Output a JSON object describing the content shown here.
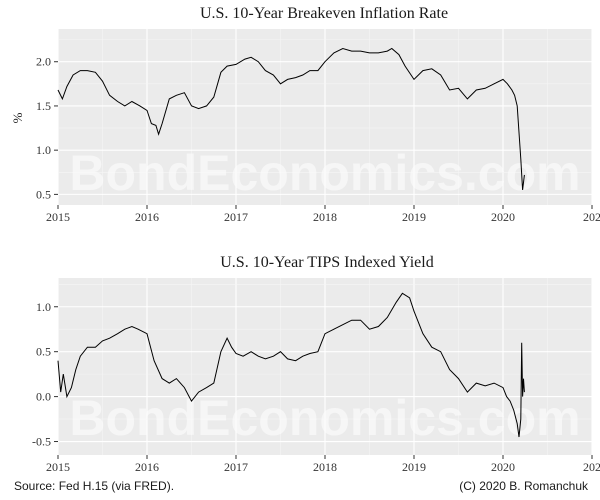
{
  "watermark": "BondEconomics.com",
  "source": "Source: Fed H.15 (via FRED).",
  "copyright": "(C) 2020 B. Romanchuk",
  "colors": {
    "panel_bg": "#ebebeb",
    "grid_major": "#ffffff",
    "grid_minor": "#f5f5f5",
    "line": "#000000"
  },
  "chart_data": [
    {
      "type": "line",
      "title": "U.S. 10-Year Breakeven Inflation Rate",
      "ylabel": "%",
      "xlabel": "",
      "x_ticks": [
        "2015",
        "2016",
        "2017",
        "2018",
        "2019",
        "2020",
        "202"
      ],
      "xlim": [
        2015,
        2021
      ],
      "ylim": [
        0.38,
        2.37
      ],
      "y_ticks": [
        0.5,
        1.0,
        1.5,
        2.0
      ],
      "y_tick_labels": [
        "0.5",
        "1.0",
        "1.5",
        "2.0"
      ],
      "grid": true,
      "series": [
        {
          "name": "",
          "x": [
            2015.0,
            2015.05,
            2015.1,
            2015.17,
            2015.25,
            2015.33,
            2015.42,
            2015.5,
            2015.58,
            2015.67,
            2015.75,
            2015.83,
            2015.92,
            2016.0,
            2016.05,
            2016.1,
            2016.13,
            2016.17,
            2016.25,
            2016.33,
            2016.42,
            2016.5,
            2016.58,
            2016.67,
            2016.75,
            2016.83,
            2016.9,
            2017.0,
            2017.1,
            2017.17,
            2017.25,
            2017.33,
            2017.42,
            2017.5,
            2017.58,
            2017.67,
            2017.75,
            2017.83,
            2017.92,
            2018.0,
            2018.1,
            2018.2,
            2018.3,
            2018.4,
            2018.5,
            2018.6,
            2018.7,
            2018.75,
            2018.83,
            2018.9,
            2019.0,
            2019.1,
            2019.2,
            2019.3,
            2019.4,
            2019.5,
            2019.6,
            2019.7,
            2019.8,
            2019.9,
            2020.0,
            2020.05,
            2020.1,
            2020.13,
            2020.16,
            2020.18,
            2020.2,
            2020.22,
            2020.24
          ],
          "y": [
            1.68,
            1.58,
            1.72,
            1.85,
            1.9,
            1.9,
            1.88,
            1.78,
            1.62,
            1.55,
            1.5,
            1.55,
            1.5,
            1.45,
            1.3,
            1.28,
            1.18,
            1.3,
            1.58,
            1.62,
            1.65,
            1.5,
            1.47,
            1.5,
            1.6,
            1.88,
            1.95,
            1.97,
            2.03,
            2.05,
            2.0,
            1.9,
            1.85,
            1.75,
            1.8,
            1.82,
            1.85,
            1.9,
            1.9,
            2.0,
            2.1,
            2.15,
            2.12,
            2.12,
            2.1,
            2.1,
            2.12,
            2.15,
            2.08,
            1.95,
            1.8,
            1.9,
            1.92,
            1.85,
            1.68,
            1.7,
            1.58,
            1.68,
            1.7,
            1.75,
            1.8,
            1.75,
            1.68,
            1.62,
            1.5,
            1.2,
            0.9,
            0.55,
            0.72
          ]
        }
      ]
    },
    {
      "type": "line",
      "title": "U.S. 10-Year TIPS Indexed Yield",
      "ylabel": "",
      "xlabel": "",
      "x_ticks": [
        "2015",
        "2016",
        "2017",
        "2018",
        "2019",
        "2020",
        "202"
      ],
      "xlim": [
        2015,
        2021
      ],
      "ylim": [
        -0.65,
        1.32
      ],
      "y_ticks": [
        -0.5,
        0.0,
        0.5,
        1.0
      ],
      "y_tick_labels": [
        "-0.5",
        "0.0",
        "0.5",
        "1.0"
      ],
      "grid": true,
      "series": [
        {
          "name": "",
          "x": [
            2015.0,
            2015.03,
            2015.06,
            2015.1,
            2015.15,
            2015.2,
            2015.25,
            2015.33,
            2015.42,
            2015.5,
            2015.58,
            2015.67,
            2015.75,
            2015.83,
            2015.9,
            2016.0,
            2016.08,
            2016.17,
            2016.25,
            2016.33,
            2016.42,
            2016.5,
            2016.58,
            2016.67,
            2016.75,
            2016.83,
            2016.9,
            2016.95,
            2017.0,
            2017.08,
            2017.17,
            2017.25,
            2017.33,
            2017.42,
            2017.5,
            2017.58,
            2017.67,
            2017.75,
            2017.83,
            2017.92,
            2018.0,
            2018.1,
            2018.2,
            2018.3,
            2018.4,
            2018.5,
            2018.6,
            2018.7,
            2018.8,
            2018.87,
            2018.95,
            2019.0,
            2019.1,
            2019.2,
            2019.3,
            2019.4,
            2019.5,
            2019.6,
            2019.7,
            2019.8,
            2019.9,
            2020.0,
            2020.04,
            2020.08,
            2020.12,
            2020.16,
            2020.18,
            2020.2,
            2020.21,
            2020.22,
            2020.23,
            2020.24
          ],
          "y": [
            0.4,
            0.05,
            0.25,
            0.0,
            0.1,
            0.3,
            0.45,
            0.55,
            0.55,
            0.62,
            0.65,
            0.7,
            0.75,
            0.78,
            0.75,
            0.7,
            0.4,
            0.2,
            0.15,
            0.2,
            0.1,
            -0.05,
            0.05,
            0.1,
            0.15,
            0.5,
            0.65,
            0.55,
            0.48,
            0.45,
            0.5,
            0.45,
            0.42,
            0.45,
            0.5,
            0.42,
            0.4,
            0.45,
            0.48,
            0.5,
            0.7,
            0.75,
            0.8,
            0.85,
            0.85,
            0.75,
            0.78,
            0.88,
            1.05,
            1.15,
            1.1,
            0.95,
            0.7,
            0.55,
            0.5,
            0.3,
            0.2,
            0.05,
            0.15,
            0.12,
            0.15,
            0.1,
            0.0,
            -0.05,
            -0.15,
            -0.3,
            -0.45,
            -0.25,
            0.6,
            0.0,
            0.2,
            0.05
          ]
        }
      ]
    }
  ]
}
